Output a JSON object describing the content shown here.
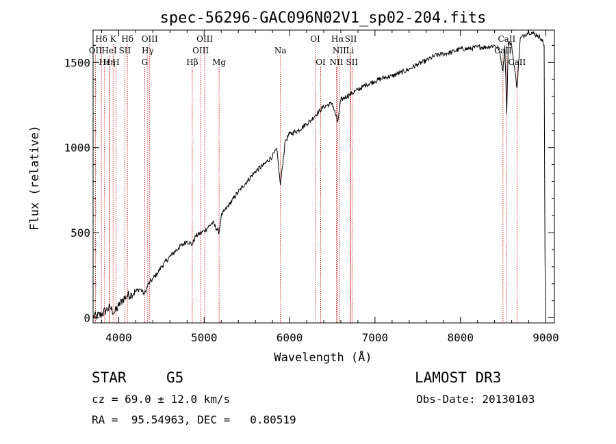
{
  "chart_data": {
    "type": "line",
    "title": "spec-56296-GAC096N02V1_sp02-204.fits",
    "xlabel": "Wavelength (Å)",
    "ylabel": "Flux (relative)",
    "xlim": [
      3700,
      9100
    ],
    "ylim": [
      -30,
      1690
    ],
    "xticks": [
      4000,
      5000,
      6000,
      7000,
      8000,
      9000
    ],
    "yticks": [
      0,
      500,
      1000,
      1500
    ],
    "series": [
      {
        "name": "flux",
        "x": [
          3700,
          3750,
          3800,
          3850,
          3900,
          3950,
          4000,
          4050,
          4100,
          4150,
          4200,
          4250,
          4300,
          4350,
          4400,
          4450,
          4500,
          4600,
          4700,
          4800,
          4862,
          4900,
          5000,
          5100,
          5175,
          5200,
          5300,
          5400,
          5500,
          5600,
          5700,
          5800,
          5850,
          5893,
          5950,
          6000,
          6100,
          6200,
          6250,
          6300,
          6400,
          6500,
          6563,
          6600,
          6700,
          6800,
          6900,
          7000,
          7100,
          7200,
          7300,
          7400,
          7500,
          7600,
          7700,
          7800,
          7900,
          8000,
          8100,
          8200,
          8300,
          8400,
          8450,
          8498,
          8520,
          8542,
          8560,
          8600,
          8662,
          8700,
          8750,
          8800,
          8850,
          8900,
          8950,
          8980,
          8990,
          9000
        ],
        "y": [
          5,
          10,
          20,
          45,
          60,
          30,
          70,
          110,
          130,
          140,
          155,
          170,
          140,
          200,
          230,
          260,
          300,
          360,
          410,
          450,
          430,
          480,
          510,
          560,
          500,
          600,
          670,
          740,
          800,
          860,
          900,
          950,
          990,
          780,
          1040,
          1080,
          1100,
          1140,
          1160,
          1190,
          1240,
          1260,
          1150,
          1280,
          1310,
          1340,
          1370,
          1390,
          1410,
          1420,
          1440,
          1460,
          1490,
          1510,
          1540,
          1550,
          1560,
          1580,
          1580,
          1590,
          1590,
          1600,
          1580,
          1450,
          1600,
          1200,
          1620,
          1600,
          1350,
          1640,
          1660,
          1680,
          1670,
          1660,
          1640,
          1600,
          330,
          0
        ]
      }
    ],
    "lines_top": [
      {
        "label": "Hδ",
        "x": 3797
      },
      {
        "label": "K",
        "x": 3934
      },
      {
        "label": "Hδ",
        "x": 4102
      },
      {
        "label": "OIII",
        "x": 4363
      },
      {
        "label": "OIII",
        "x": 5007
      },
      {
        "label": "OI",
        "x": 6300
      },
      {
        "label": "Hα",
        "x": 6563
      },
      {
        "label": "SII",
        "x": 6717
      },
      {
        "label": "CaII",
        "x": 8542
      }
    ],
    "lines_mid": [
      {
        "label": "OII",
        "x": 3727
      },
      {
        "label": "HeI",
        "x": 3889
      },
      {
        "label": "SII",
        "x": 4072
      },
      {
        "label": "Hγ",
        "x": 4340
      },
      {
        "label": "OIII",
        "x": 4959
      },
      {
        "label": "Na",
        "x": 5893
      },
      {
        "label": "NII",
        "x": 6583
      },
      {
        "label": "Li",
        "x": 6708
      },
      {
        "label": "CaII",
        "x": 8498
      }
    ],
    "lines_bot": [
      {
        "label": "Hε",
        "x": 3835
      },
      {
        "label": "Hη",
        "x": 3889
      },
      {
        "label": "H",
        "x": 3968
      },
      {
        "label": "G",
        "x": 4304
      },
      {
        "label": "Hβ",
        "x": 4861
      },
      {
        "label": "Mg",
        "x": 5175
      },
      {
        "label": "OI",
        "x": 6364
      },
      {
        "label": "NII",
        "x": 6548
      },
      {
        "label": "SII",
        "x": 6731
      },
      {
        "label": "CaII",
        "x": 8662
      }
    ]
  },
  "info": {
    "class": "STAR",
    "subclass": "G5",
    "survey": "LAMOST DR3",
    "cz": "cz = 69.0 ± 12.0 km/s",
    "obs_date": "Obs-Date: 20130103",
    "radec": "RA =  95.54963, DEC =   0.80519"
  },
  "colors": {
    "line_marker": "#c00000",
    "spectrum": "#000000",
    "axis": "#000000"
  }
}
